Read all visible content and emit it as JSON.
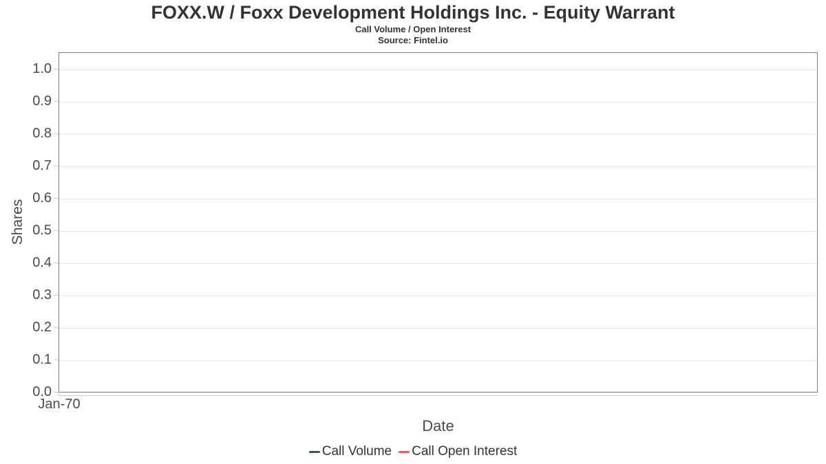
{
  "chart_data": {
    "type": "line",
    "title": "FOXX.W / Foxx Development Holdings Inc. - Equity Warrant",
    "subtitle": "Call Volume / Open Interest",
    "source": "Source: Fintel.io",
    "xlabel": "Date",
    "ylabel": "Shares",
    "x_ticks": [
      "Jan-70"
    ],
    "y_ticks": [
      "0.0",
      "0.1",
      "0.2",
      "0.3",
      "0.4",
      "0.5",
      "0.6",
      "0.7",
      "0.8",
      "0.9",
      "1.0"
    ],
    "ylim": [
      0,
      1.05
    ],
    "grid": "horizontal",
    "legend_position": "bottom-center",
    "series": [
      {
        "name": "Call Volume",
        "color": "#2f5c3b",
        "values": []
      },
      {
        "name": "Call Open Interest",
        "color": "#f45b5b",
        "values": []
      }
    ]
  },
  "colors": {
    "plot_border": "#7f7f7f",
    "gridline": "#e6e6e6",
    "tick": "#cccccc",
    "title_text": "#333333",
    "axis_text": "#4a4a4a"
  }
}
